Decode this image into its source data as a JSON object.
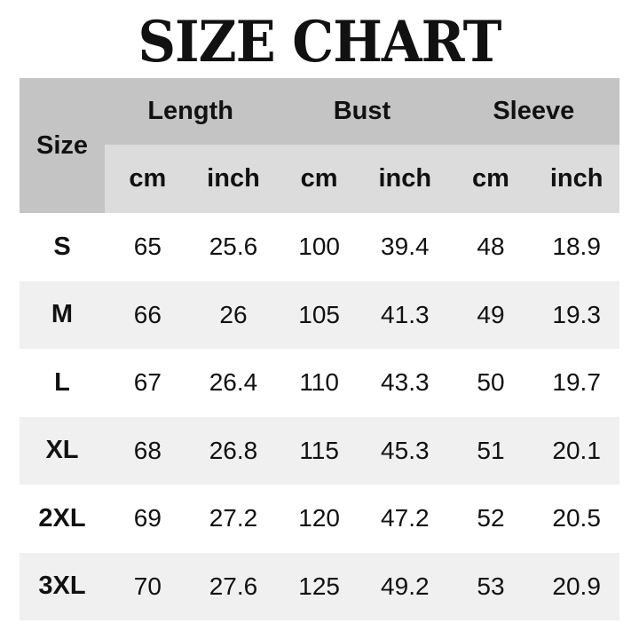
{
  "title": "SIZE CHART",
  "headers": {
    "size": "Size",
    "groups": [
      "Length",
      "Bust",
      "Sleeve"
    ],
    "units": [
      "cm",
      "inch",
      "cm",
      "inch",
      "cm",
      "inch"
    ]
  },
  "rows": [
    {
      "size": "S",
      "values": [
        "65",
        "25.6",
        "100",
        "39.4",
        "48",
        "18.9"
      ]
    },
    {
      "size": "M",
      "values": [
        "66",
        "26",
        "105",
        "41.3",
        "49",
        "19.3"
      ]
    },
    {
      "size": "L",
      "values": [
        "67",
        "26.4",
        "110",
        "43.3",
        "50",
        "19.7"
      ]
    },
    {
      "size": "XL",
      "values": [
        "68",
        "26.8",
        "115",
        "45.3",
        "51",
        "20.1"
      ]
    },
    {
      "size": "2XL",
      "values": [
        "69",
        "27.2",
        "120",
        "47.2",
        "52",
        "20.5"
      ]
    },
    {
      "size": "3XL",
      "values": [
        "70",
        "27.6",
        "125",
        "49.2",
        "53",
        "20.9"
      ]
    }
  ],
  "colors": {
    "header": "#c4c4c4",
    "subheader": "#dcdcdc",
    "alt_row": "#f0f0f0"
  }
}
